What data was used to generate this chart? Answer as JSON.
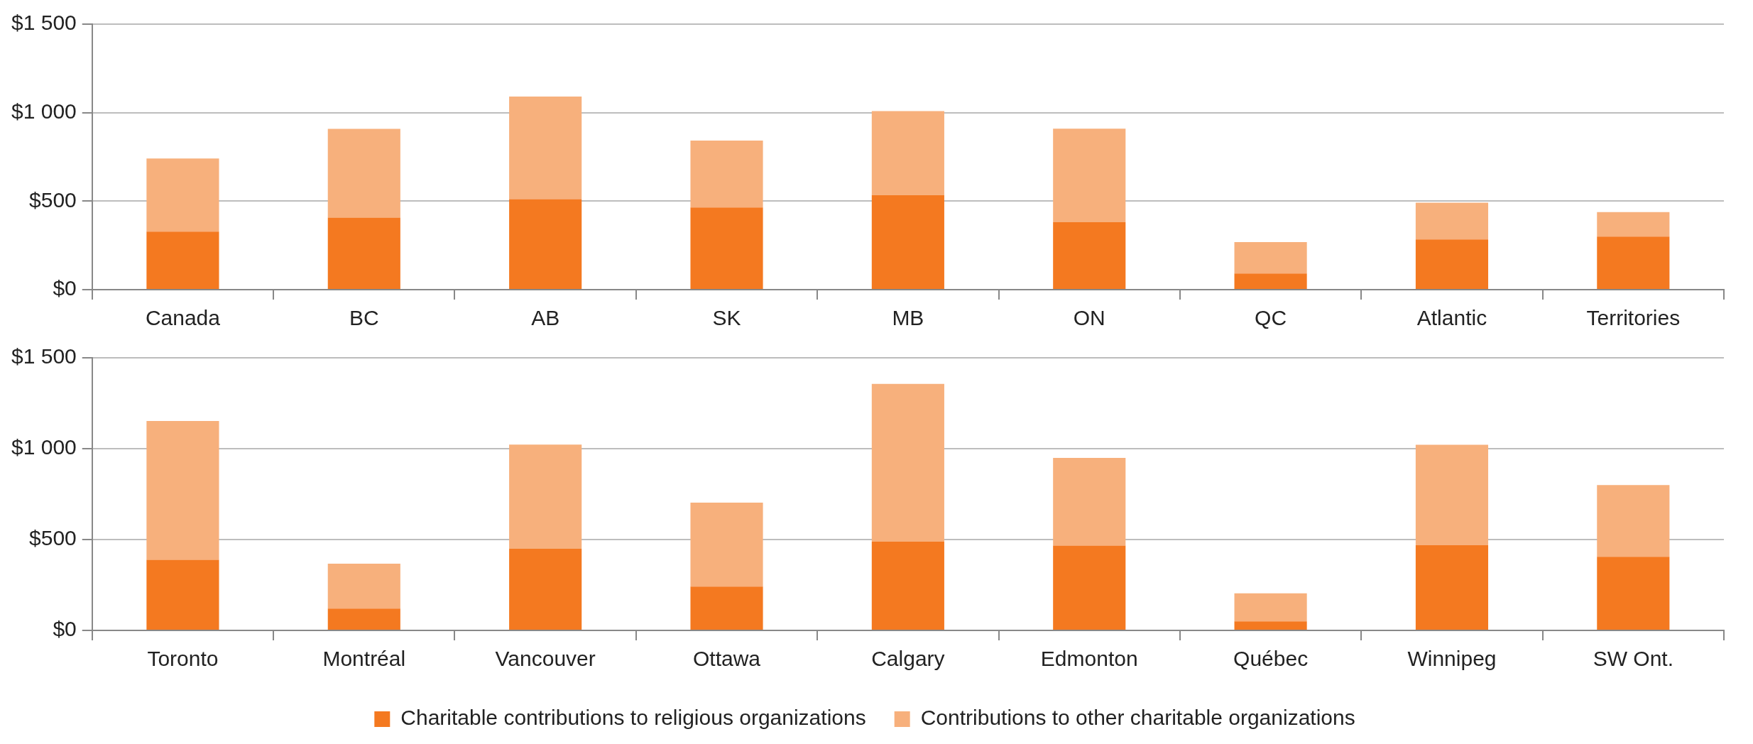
{
  "chart_data": [
    {
      "type": "bar",
      "stacked": true,
      "categories": [
        "Canada",
        "BC",
        "AB",
        "SK",
        "MB",
        "ON",
        "QC",
        "Atlantic",
        "Territories"
      ],
      "series": [
        {
          "color": "#f47920",
          "values": [
            328,
            407,
            511,
            464,
            534,
            381,
            91,
            284,
            300
          ]
        },
        {
          "color": "#f7b07c",
          "values": [
            413,
            501,
            580,
            378,
            475,
            528,
            178,
            207,
            138
          ]
        }
      ],
      "ylim": [
        0,
        1500
      ],
      "yticks": [
        {
          "value": 0,
          "label": "$0"
        },
        {
          "value": 500,
          "label": "$500"
        },
        {
          "value": 1000,
          "label": "$1 000"
        },
        {
          "value": 1500,
          "label": "$1 500"
        }
      ],
      "grid": "y",
      "legend": false
    },
    {
      "type": "bar",
      "stacked": true,
      "categories": [
        "Toronto",
        "Montréal",
        "Vancouver",
        "Ottawa",
        "Calgary",
        "Edmonton",
        "Québec",
        "Winnipeg",
        "SW Ont."
      ],
      "series": [
        {
          "name": "Charitable contributions to religious organizations",
          "color": "#f47920",
          "values": [
            389,
            120,
            449,
            241,
            489,
            467,
            50,
            470,
            405
          ]
        },
        {
          "name": "Contributions to other charitable organizations",
          "color": "#f7b07c",
          "values": [
            763,
            247,
            573,
            462,
            867,
            482,
            154,
            551,
            395
          ]
        }
      ],
      "ylim": [
        0,
        1500
      ],
      "yticks": [
        {
          "value": 0,
          "label": "$0"
        },
        {
          "value": 500,
          "label": "$500"
        },
        {
          "value": 1000,
          "label": "$1 000"
        },
        {
          "value": 1500,
          "label": "$1 500"
        }
      ],
      "grid": "y",
      "legend": "bottom"
    }
  ]
}
